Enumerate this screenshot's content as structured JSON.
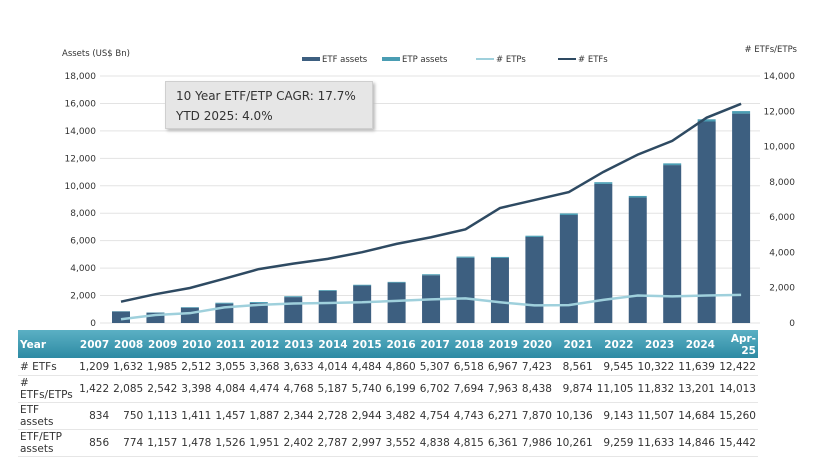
{
  "chart_data": {
    "type": "bar+line",
    "categories": [
      "2007",
      "2008",
      "2009",
      "2010",
      "2011",
      "2012",
      "2013",
      "2014",
      "2015",
      "2016",
      "2017",
      "2018",
      "2019",
      "2020",
      "2021",
      "2022",
      "2023",
      "2024",
      "Apr-25"
    ],
    "left_axis": {
      "label": "Assets (US$ Bn)",
      "range": [
        0,
        18000
      ],
      "ticks": [
        "0",
        "2,000",
        "4,000",
        "6,000",
        "8,000",
        "10,000",
        "12,000",
        "14,000",
        "16,000",
        "18,000"
      ]
    },
    "right_axis": {
      "label": "# ETFs/ETPs",
      "range": [
        0,
        14000
      ],
      "ticks": [
        "0",
        "2,000",
        "4,000",
        "6,000",
        "8,000",
        "10,000",
        "12,000",
        "14,000"
      ]
    },
    "legend": [
      "ETF assets",
      "ETP assets",
      "# ETPs",
      "# ETFs"
    ],
    "legend_placement": "top",
    "colors": {
      "etf_assets": "#3d5f80",
      "etp_assets": "#4a9db3",
      "etps_line": "#9fd0dc",
      "etfs_line": "#2e4a62"
    },
    "series": [
      {
        "name": "ETF assets",
        "type": "bar",
        "axis": "left",
        "values": [
          834,
          750,
          1113,
          1411,
          1457,
          1887,
          2344,
          2728,
          2944,
          3482,
          4754,
          4743,
          6271,
          7870,
          10136,
          9143,
          11507,
          14684,
          15260
        ]
      },
      {
        "name": "ETP assets",
        "type": "stacked-bar",
        "axis": "left",
        "values": [
          22,
          24,
          44,
          67,
          69,
          64,
          58,
          59,
          53,
          70,
          84,
          72,
          90,
          116,
          125,
          116,
          126,
          162,
          182
        ]
      },
      {
        "name": "# ETPs",
        "type": "line",
        "axis": "right",
        "values": [
          213,
          453,
          557,
          886,
          1029,
          1106,
          1135,
          1173,
          1256,
          1339,
          1395,
          1176,
          996,
          1015,
          1313,
          1560,
          1510,
          1562,
          1591
        ]
      },
      {
        "name": "# ETFs",
        "type": "line",
        "axis": "right",
        "values": [
          1209,
          1632,
          1985,
          2512,
          3055,
          3368,
          3633,
          4014,
          4484,
          4860,
          5307,
          6518,
          6967,
          7423,
          8561,
          9545,
          10322,
          11639,
          12422
        ]
      }
    ],
    "annotation": [
      "10 Year ETF/ETP CAGR: 17.7%",
      "YTD 2025: 4.0%"
    ],
    "grid": "horizontal"
  },
  "table": {
    "header": "Year",
    "rows": [
      {
        "label": "# ETFs",
        "values": [
          "1,209",
          "1,632",
          "1,985",
          "2,512",
          "3,055",
          "3,368",
          "3,633",
          "4,014",
          "4,484",
          "4,860",
          "5,307",
          "6,518",
          "6,967",
          "7,423",
          "8,561",
          "9,545",
          "10,322",
          "11,639",
          "12,422"
        ]
      },
      {
        "label": "# ETFs/ETPs",
        "values": [
          "1,422",
          "2,085",
          "2,542",
          "3,398",
          "4,084",
          "4,474",
          "4,768",
          "5,187",
          "5,740",
          "6,199",
          "6,702",
          "7,694",
          "7,963",
          "8,438",
          "9,874",
          "11,105",
          "11,832",
          "13,201",
          "14,013"
        ]
      },
      {
        "label": "ETF assets",
        "values": [
          "834",
          "750",
          "1,113",
          "1,411",
          "1,457",
          "1,887",
          "2,344",
          "2,728",
          "2,944",
          "3,482",
          "4,754",
          "4,743",
          "6,271",
          "7,870",
          "10,136",
          "9,143",
          "11,507",
          "14,684",
          "15,260"
        ]
      },
      {
        "label": "ETF/ETP assets",
        "values": [
          "856",
          "774",
          "1,157",
          "1,478",
          "1,526",
          "1,951",
          "2,402",
          "2,787",
          "2,997",
          "3,552",
          "4,838",
          "4,815",
          "6,361",
          "7,986",
          "10,261",
          "9,259",
          "11,633",
          "14,846",
          "15,442"
        ]
      }
    ]
  }
}
